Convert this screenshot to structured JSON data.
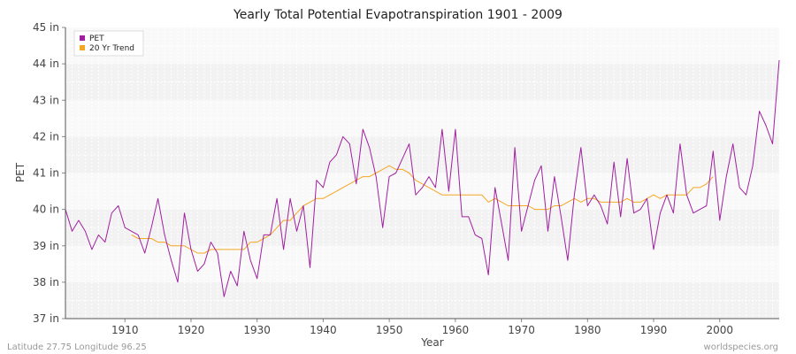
{
  "chart_data": {
    "type": "line",
    "title": "Yearly Total Potential Evapotranspiration 1901 - 2009",
    "xlabel": "Year",
    "ylabel": "PET",
    "xlim": [
      1901,
      2009
    ],
    "ylim": [
      37,
      45
    ],
    "x_ticks": [
      1910,
      1920,
      1930,
      1940,
      1950,
      1960,
      1970,
      1980,
      1990,
      2000
    ],
    "y_ticks": [
      37,
      38,
      39,
      40,
      41,
      42,
      43,
      44,
      45
    ],
    "y_tick_labels": [
      "37 in",
      "38 in",
      "39 in",
      "40 in",
      "41 in",
      "42 in",
      "43 in",
      "44 in",
      "45 in"
    ],
    "legend_position": "top-left",
    "series": [
      {
        "name": "PET",
        "color": "#a020a0",
        "x_start": 1901,
        "values": [
          40.0,
          39.4,
          39.7,
          39.4,
          38.9,
          39.3,
          39.1,
          39.9,
          40.1,
          39.5,
          39.4,
          39.3,
          38.8,
          39.5,
          40.3,
          39.3,
          38.6,
          38.0,
          39.9,
          38.9,
          38.3,
          38.5,
          39.1,
          38.8,
          37.6,
          38.3,
          37.9,
          39.4,
          38.6,
          38.1,
          39.3,
          39.3,
          40.3,
          38.9,
          40.3,
          39.4,
          40.1,
          38.4,
          40.8,
          40.6,
          41.3,
          41.5,
          42.0,
          41.8,
          40.7,
          42.2,
          41.7,
          40.9,
          39.5,
          40.9,
          41.0,
          41.4,
          41.8,
          40.4,
          40.6,
          40.9,
          40.6,
          42.2,
          40.5,
          42.2,
          39.8,
          39.8,
          39.3,
          39.2,
          38.2,
          40.6,
          39.6,
          38.6,
          41.7,
          39.4,
          40.1,
          40.8,
          41.2,
          39.4,
          40.9,
          39.8,
          38.6,
          40.4,
          41.7,
          40.1,
          40.4,
          40.1,
          39.6,
          41.3,
          39.8,
          41.4,
          39.9,
          40.0,
          40.3,
          38.9,
          39.9,
          40.4,
          39.9,
          41.8,
          40.4,
          39.9,
          40.0,
          40.1,
          41.6,
          39.7,
          40.9,
          41.8,
          40.6,
          40.4,
          41.2,
          42.7,
          42.3,
          41.8,
          44.1
        ]
      },
      {
        "name": "20 Yr Trend",
        "color": "#f5a623",
        "x_start": 1911,
        "values": [
          39.3,
          39.2,
          39.2,
          39.2,
          39.1,
          39.1,
          39.0,
          39.0,
          39.0,
          38.9,
          38.8,
          38.8,
          38.9,
          38.9,
          38.9,
          38.9,
          38.9,
          38.9,
          39.1,
          39.1,
          39.2,
          39.3,
          39.5,
          39.7,
          39.7,
          39.9,
          40.1,
          40.2,
          40.3,
          40.3,
          40.4,
          40.5,
          40.6,
          40.7,
          40.8,
          40.9,
          40.9,
          41.0,
          41.1,
          41.2,
          41.1,
          41.1,
          41.0,
          40.8,
          40.7,
          40.6,
          40.5,
          40.4,
          40.4,
          40.4,
          40.4,
          40.4,
          40.4,
          40.4,
          40.2,
          40.3,
          40.2,
          40.1,
          40.1,
          40.1,
          40.1,
          40.0,
          40.0,
          40.0,
          40.1,
          40.1,
          40.2,
          40.3,
          40.2,
          40.3,
          40.3,
          40.2,
          40.2,
          40.2,
          40.2,
          40.3,
          40.2,
          40.2,
          40.3,
          40.4,
          40.3,
          40.4,
          40.4,
          40.4,
          40.4,
          40.6,
          40.6,
          40.7,
          40.9
        ]
      }
    ]
  },
  "footer": {
    "location": "Latitude 27.75 Longitude 96.25",
    "source": "worldspecies.org"
  }
}
